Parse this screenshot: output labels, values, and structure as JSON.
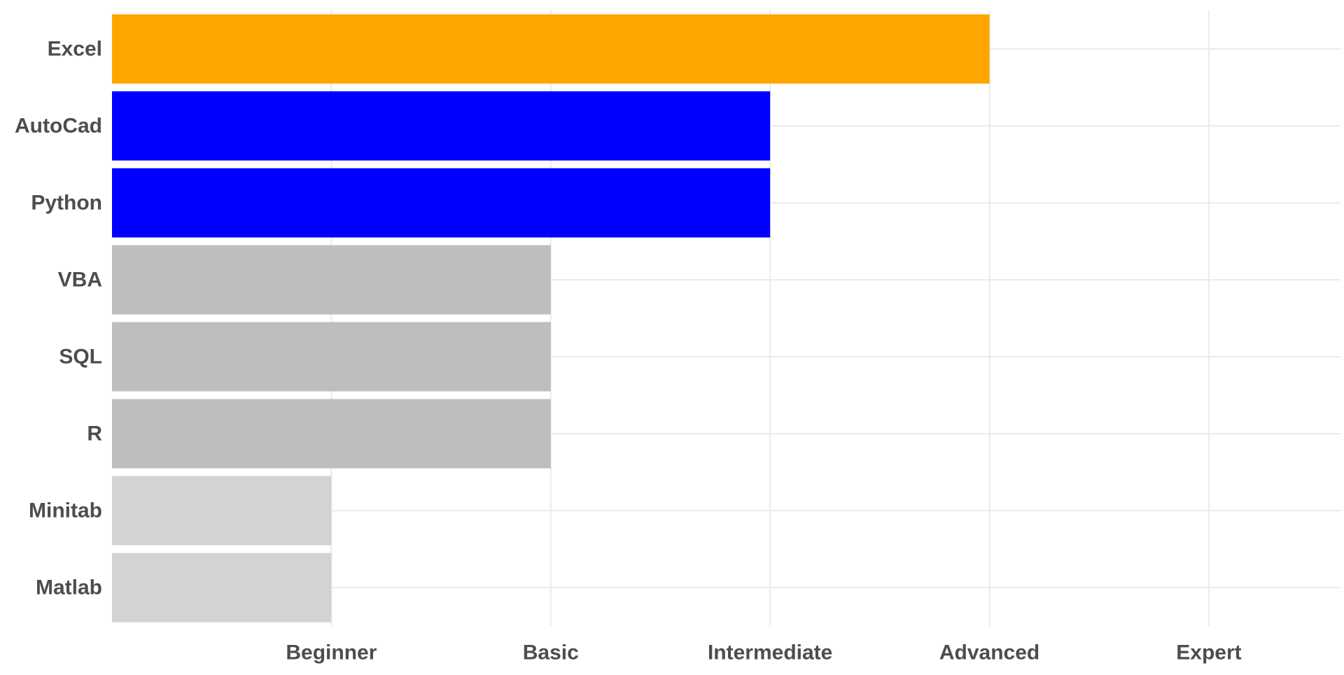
{
  "chart_data": {
    "type": "bar",
    "orientation": "horizontal",
    "categories": [
      "Excel",
      "AutoCad",
      "Python",
      "VBA",
      "SQL",
      "R",
      "Minitab",
      "Matlab"
    ],
    "values": [
      4,
      3,
      3,
      2,
      2,
      2,
      1,
      1
    ],
    "colors": [
      "#FFA500",
      "#0000FF",
      "#0000FF",
      "#BEBEBE",
      "#BEBEBE",
      "#BEBEBE",
      "#D3D3D3",
      "#D3D3D3"
    ],
    "x_tick_values": [
      1,
      2,
      3,
      4,
      5
    ],
    "x_tick_labels": [
      "Beginner",
      "Basic",
      "Intermediate",
      "Advanced",
      "Expert"
    ],
    "xlim": [
      0,
      5.6
    ],
    "title": "",
    "xlabel": "",
    "ylabel": "",
    "grid": true,
    "legend": "none"
  }
}
